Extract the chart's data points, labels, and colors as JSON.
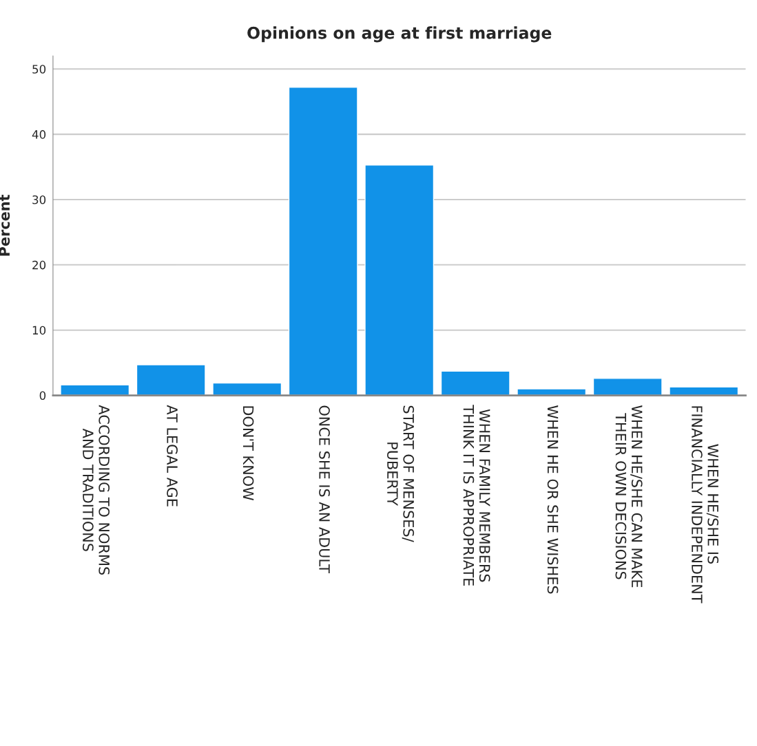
{
  "chart_data": {
    "type": "bar",
    "title": "Opinions on age at first marriage",
    "ylabel": "Percent",
    "categories": [
      "ACCORDING TO NORMS\nAND TRADITIONS",
      "AT LEGAL AGE",
      "DON'T KNOW",
      "ONCE SHE IS AN ADULT",
      "START OF MENSES/\nPUBERTY",
      "WHEN FAMILY MEMBERS\nTHINK IT IS APPROPRIATE",
      "WHEN HE OR SHE WISHES",
      "WHEN HE/SHE CAN MAKE\nTHEIR OWN DECISIONS",
      "WHEN HE/SHE IS\nFINANCIALLY INDEPENDENT"
    ],
    "values": [
      1.6,
      4.7,
      1.9,
      47.2,
      35.3,
      3.7,
      1.0,
      2.6,
      1.3
    ],
    "color": "#1192e8",
    "ylim": [
      0,
      52
    ],
    "yticks": [
      0,
      10,
      20,
      30,
      40,
      50
    ],
    "grid": "y",
    "legend": false
  }
}
